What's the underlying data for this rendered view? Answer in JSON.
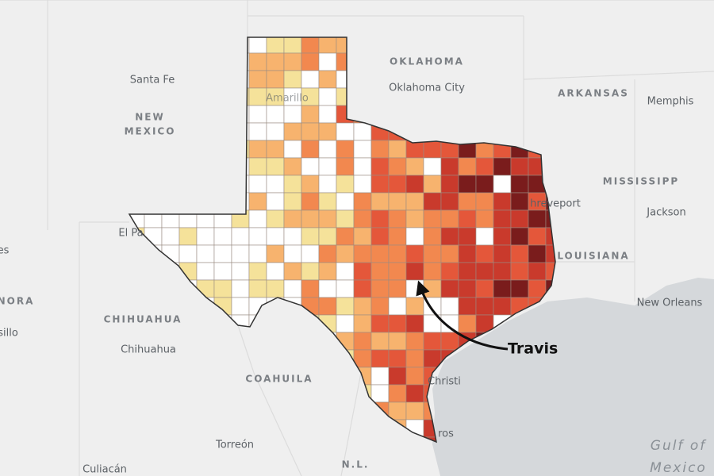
{
  "annotation": "Travis",
  "labels": {
    "states": [
      "OKLAHOMA",
      "ARKANSAS",
      "NEW",
      "MEXICO",
      "MISSISSIPP",
      "LOUISIANA",
      "CHIHUAHUA",
      "COAHUILA",
      "NORA",
      "N.L."
    ],
    "cities": [
      "Santa Fe",
      "Oklahoma City",
      "Memphis",
      "Jackson",
      "hreveport",
      "New Orleans",
      "El Pa",
      "Chihuahua",
      "Torreón",
      "Amarillo",
      "Christi",
      "ros",
      "sillo",
      "es",
      "Culiacán"
    ],
    "water": [
      "Gulf of",
      "Mexico"
    ]
  }
}
